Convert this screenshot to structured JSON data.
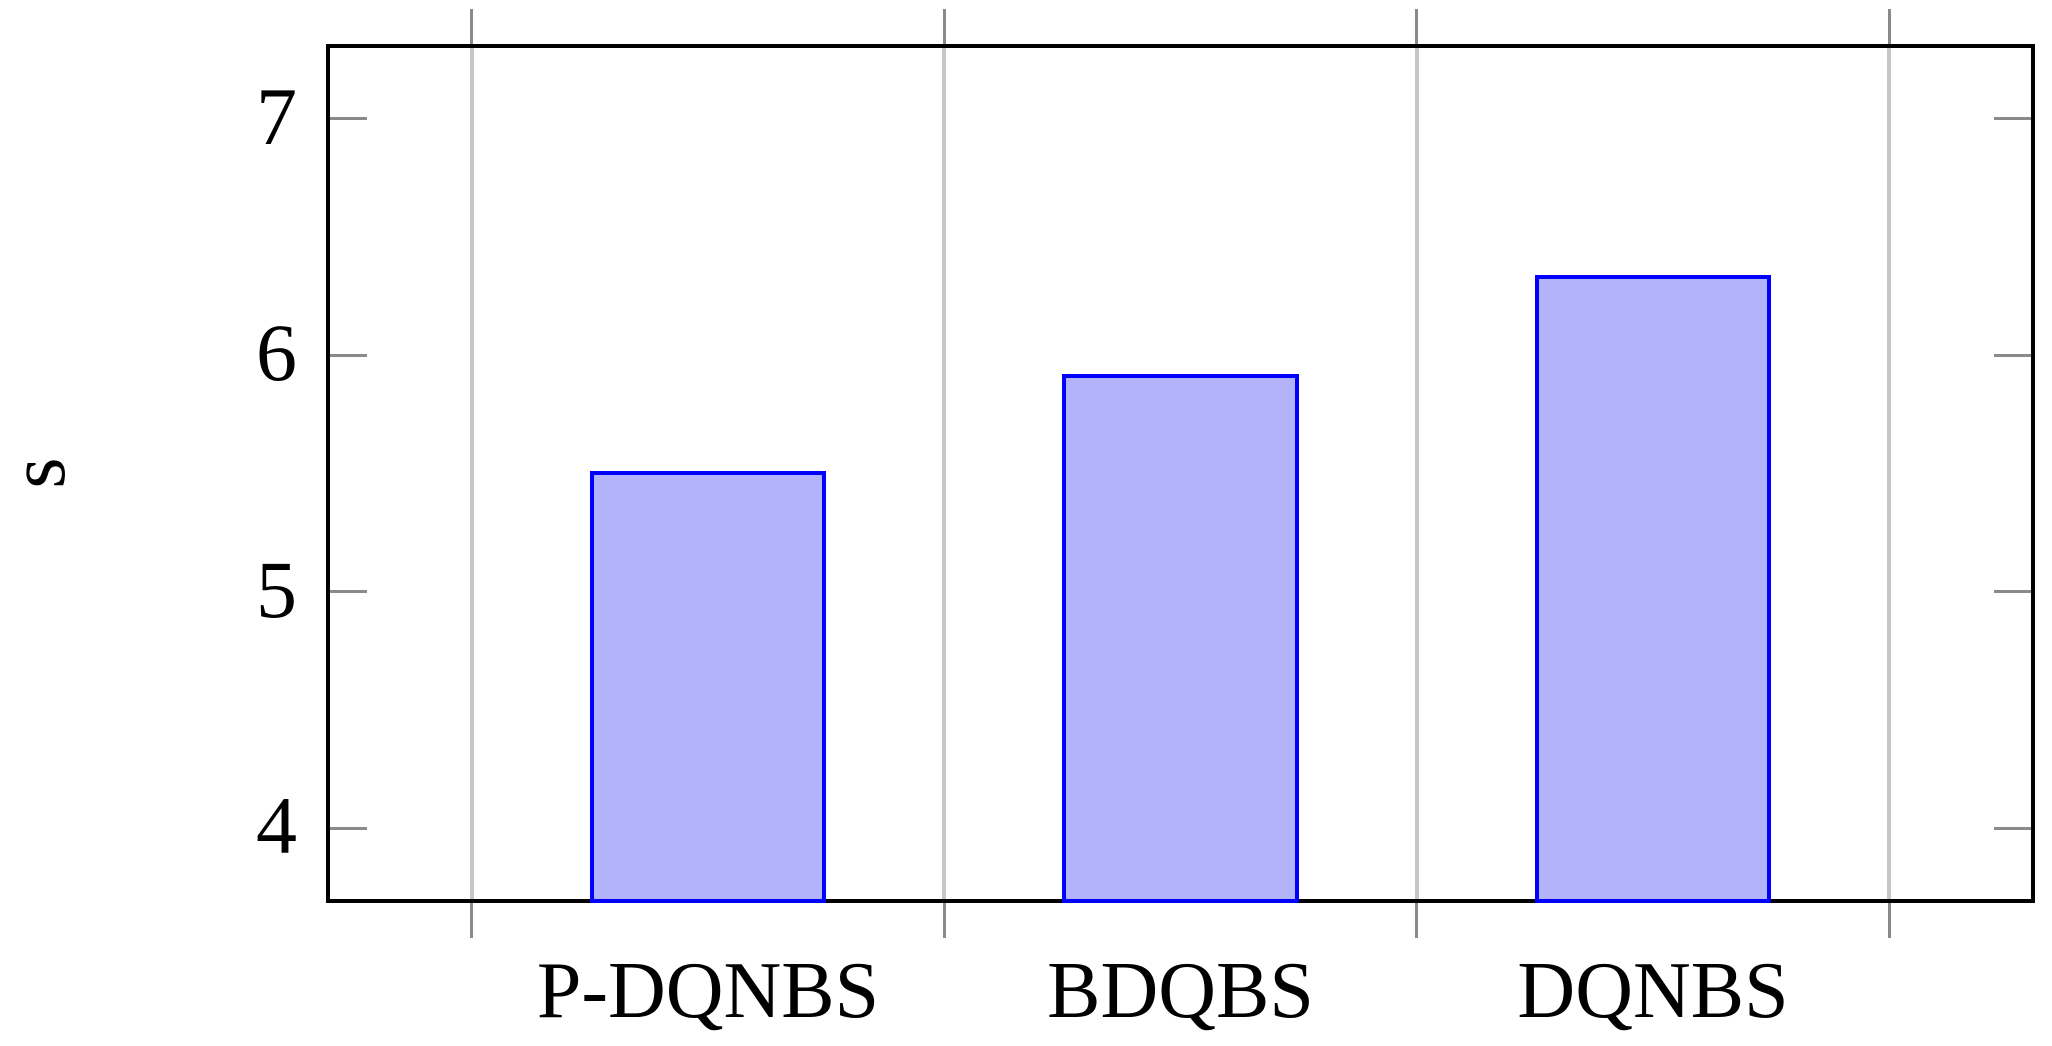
{
  "figure": {
    "background": "#ffffff"
  },
  "chart_data": {
    "type": "bar",
    "title": "",
    "xlabel": "",
    "ylabel": "s",
    "categories": [
      "P-DQNBS",
      "BDQBS",
      "DQNBS"
    ],
    "values": [
      5.51,
      5.92,
      6.34
    ],
    "yticks": [
      4,
      5,
      6,
      7
    ],
    "ylim": [
      3.7,
      7.3
    ],
    "xticks": [
      1,
      2,
      3,
      4
    ],
    "xlim": [
      0.7,
      4.3
    ],
    "bar_centers": [
      1.5,
      2.5,
      3.5
    ],
    "bar_width": 0.5,
    "grid": "vertical-gridlines-only",
    "legend": "none",
    "colors": {
      "bar_fill": "#b3b3fa",
      "bar_border": "#0000fe",
      "gridline": "#c6c6c6",
      "tick_mark": "#8a8a8a",
      "axis_frame": "#000000",
      "text": "#000000"
    }
  }
}
